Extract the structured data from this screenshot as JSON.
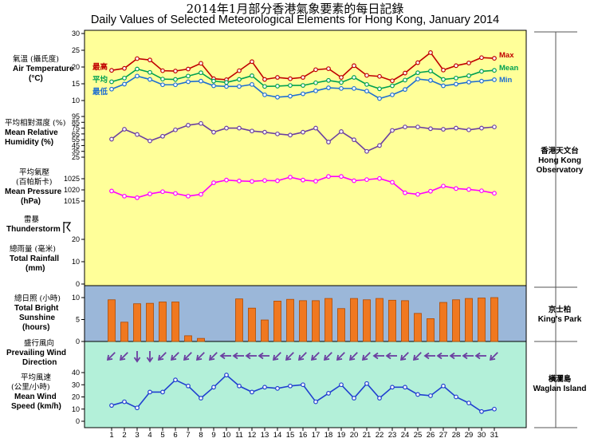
{
  "title_cn": "2014年1月部分香港氣象要素的每日記錄",
  "title_en": "Daily Values of Selected Meteorological Elements for Hong Kong, January 2014",
  "labels": {
    "air_temp_cn": "氣溫 (攝氏度)",
    "air_temp_en": "Air Temperature",
    "air_temp_unit": "(°C)",
    "humidity_cn": "平均相對濕度 (%)",
    "humidity_en1": "Mean Relative",
    "humidity_en2": "Humidity (%)",
    "pressure_cn1": "平均氣壓",
    "pressure_cn2": "(百帕斯卡)",
    "pressure_en1": "Mean Pressure",
    "pressure_en2": "(hPa)",
    "thunder_cn": "雷暴",
    "thunder_en": "Thunderstorm",
    "rain_cn": "總雨量 (毫米)",
    "rain_en1": "Total Rainfall",
    "rain_en2": "(mm)",
    "sun_cn": "總日照 (小時)",
    "sun_en1": "Total Bright",
    "sun_en2": "Sunshine",
    "sun_en3": "(hours)",
    "wind_dir_cn": "盛行風向",
    "wind_dir_en1": "Prevailing Wind",
    "wind_dir_en2": "Direction",
    "wind_spd_cn": "平均風速",
    "wind_spd_cn2": "(公里/小時)",
    "wind_spd_en1": "Mean Wind",
    "wind_spd_en2": "Speed (km/h)",
    "max_cn": "最高",
    "max_en": "Max",
    "mean_cn": "平均",
    "mean_en": "Mean",
    "min_cn": "最低",
    "min_en": "Min"
  },
  "stations": {
    "hko_cn": "香港天文台",
    "hko_en1": "Hong Kong",
    "hko_en2": "Observatory",
    "kp_cn": "京士柏",
    "kp_en": "King's Park",
    "wi_cn": "橫瀾島",
    "wi_en": "Waglan Island"
  },
  "colors": {
    "upper_bg": "#ffff99",
    "sun_bg": "#9bb7d9",
    "wind_bg": "#b3f0d9",
    "max": "#c00000",
    "mean": "#00a050",
    "min": "#1f6fd0",
    "humidity": "#6b3fa0",
    "pressure": "#ff00ff",
    "sunshine": "#f07820",
    "wind_dir": "#6b3fa0",
    "wind_speed": "#1f3fd0"
  },
  "chart_data": [
    {
      "type": "line",
      "name": "air-temperature",
      "x": [
        1,
        2,
        3,
        4,
        5,
        6,
        7,
        8,
        9,
        10,
        11,
        12,
        13,
        14,
        15,
        16,
        17,
        18,
        19,
        20,
        21,
        22,
        23,
        24,
        25,
        26,
        27,
        28,
        29,
        30,
        31
      ],
      "yticks": [
        10,
        15,
        20,
        25,
        30
      ],
      "ylim": [
        10,
        30
      ],
      "series": [
        {
          "name": "Max",
          "values": [
            19.0,
            19.6,
            22.5,
            22.1,
            18.9,
            18.8,
            19.4,
            21.1,
            16.5,
            16.2,
            18.9,
            21.6,
            16.3,
            16.9,
            16.5,
            16.9,
            19.2,
            19.5,
            16.9,
            20.4,
            17.5,
            17.2,
            15.9,
            18.2,
            21.3,
            24.3,
            19.1,
            20.4,
            21.2,
            22.8,
            22.6
          ]
        },
        {
          "name": "Mean",
          "values": [
            15.6,
            16.7,
            19.4,
            18.4,
            16.4,
            16.3,
            17.3,
            18.3,
            15.8,
            15.4,
            16.3,
            17.4,
            14.2,
            14.3,
            14.5,
            14.5,
            15.3,
            16.0,
            15.4,
            16.9,
            14.8,
            13.5,
            14.4,
            16.1,
            18.3,
            18.8,
            16.3,
            16.7,
            17.4,
            18.7,
            19.0
          ]
        },
        {
          "name": "Min",
          "values": [
            13.4,
            14.9,
            17.3,
            16.3,
            14.7,
            14.7,
            15.6,
            15.8,
            14.4,
            14.2,
            14.2,
            14.8,
            11.7,
            11.0,
            11.3,
            12.0,
            12.9,
            13.8,
            13.6,
            13.6,
            12.8,
            10.6,
            11.7,
            13.3,
            16.4,
            16.0,
            14.4,
            14.9,
            15.5,
            15.8,
            16.2
          ]
        }
      ]
    },
    {
      "type": "line",
      "name": "mean-relative-humidity",
      "x": [
        1,
        2,
        3,
        4,
        5,
        6,
        7,
        8,
        9,
        10,
        11,
        12,
        13,
        14,
        15,
        16,
        17,
        18,
        19,
        20,
        21,
        22,
        23,
        24,
        25,
        26,
        27,
        28,
        29,
        30,
        31
      ],
      "yticks": [
        25,
        35,
        45,
        55,
        65,
        75,
        85,
        95
      ],
      "ylim": [
        25,
        95
      ],
      "values": [
        56,
        73,
        64,
        53,
        61,
        72,
        80,
        83,
        68,
        75,
        75,
        70,
        68,
        65,
        63,
        68,
        75,
        51,
        69,
        55,
        35,
        45,
        71,
        77,
        77,
        74,
        73,
        75,
        72,
        75,
        77
      ]
    },
    {
      "type": "line",
      "name": "mean-pressure",
      "x": [
        1,
        2,
        3,
        4,
        5,
        6,
        7,
        8,
        9,
        10,
        11,
        12,
        13,
        14,
        15,
        16,
        17,
        18,
        19,
        20,
        21,
        22,
        23,
        24,
        25,
        26,
        27,
        28,
        29,
        30,
        31
      ],
      "yticks": [
        1015,
        1020,
        1025
      ],
      "ylim": [
        1012,
        1028
      ],
      "values": [
        1019.5,
        1017.2,
        1016.5,
        1018.2,
        1019.2,
        1018.4,
        1017.2,
        1018.0,
        1023.2,
        1024.4,
        1024.0,
        1023.8,
        1024.2,
        1024.1,
        1025.7,
        1024.4,
        1023.9,
        1026.0,
        1026.0,
        1024.1,
        1024.6,
        1025.1,
        1023.4,
        1018.7,
        1018.0,
        1019.4,
        1021.7,
        1020.6,
        1020.2,
        1019.6,
        1018.5
      ]
    },
    {
      "type": "bar",
      "name": "total-rainfall",
      "x": [
        1,
        2,
        3,
        4,
        5,
        6,
        7,
        8,
        9,
        10,
        11,
        12,
        13,
        14,
        15,
        16,
        17,
        18,
        19,
        20,
        21,
        22,
        23,
        24,
        25,
        26,
        27,
        28,
        29,
        30,
        31
      ],
      "yticks": [
        0,
        10,
        20
      ],
      "ylim": [
        0,
        30
      ],
      "values": [
        0,
        0,
        0,
        0,
        0,
        0,
        0,
        0,
        0,
        0,
        0,
        0,
        0,
        0,
        0,
        0,
        0,
        0,
        0,
        0,
        0,
        0,
        0,
        0,
        0,
        0,
        0,
        0,
        0,
        0,
        0
      ]
    },
    {
      "type": "bar",
      "name": "total-bright-sunshine",
      "x": [
        1,
        2,
        3,
        4,
        5,
        6,
        7,
        8,
        9,
        10,
        11,
        12,
        13,
        14,
        15,
        16,
        17,
        18,
        19,
        20,
        21,
        22,
        23,
        24,
        25,
        26,
        27,
        28,
        29,
        30,
        31
      ],
      "yticks": [
        0,
        5,
        10
      ],
      "ylim": [
        0,
        12
      ],
      "values": [
        9.5,
        4.4,
        8.6,
        8.7,
        9.0,
        9.0,
        1.3,
        0.7,
        0,
        0,
        9.7,
        7.6,
        4.9,
        9.2,
        9.6,
        9.3,
        9.3,
        9.8,
        7.5,
        9.8,
        9.5,
        9.8,
        9.4,
        9.3,
        6.4,
        5.2,
        8.9,
        9.5,
        9.8,
        9.9,
        10.0
      ]
    },
    {
      "type": "line",
      "name": "mean-wind-speed",
      "x": [
        1,
        2,
        3,
        4,
        5,
        6,
        7,
        8,
        9,
        10,
        11,
        12,
        13,
        14,
        15,
        16,
        17,
        18,
        19,
        20,
        21,
        22,
        23,
        24,
        25,
        26,
        27,
        28,
        29,
        30,
        31
      ],
      "yticks": [
        0,
        10,
        20,
        30,
        40
      ],
      "ylim": [
        0,
        45
      ],
      "values": [
        13,
        16,
        11,
        24,
        24,
        34,
        29,
        19,
        28,
        38,
        29,
        24,
        28,
        27,
        29,
        30,
        16,
        23,
        30,
        19,
        31,
        19,
        28,
        28,
        22,
        21,
        29,
        20,
        15,
        8,
        10
      ]
    }
  ],
  "wind_direction": {
    "icon": "arrow-icon",
    "angles": [
      225,
      225,
      180,
      180,
      225,
      225,
      225,
      225,
      225,
      270,
      270,
      270,
      270,
      225,
      225,
      225,
      225,
      225,
      225,
      225,
      225,
      270,
      270,
      225,
      225,
      270,
      270,
      270,
      270,
      270,
      225
    ]
  }
}
